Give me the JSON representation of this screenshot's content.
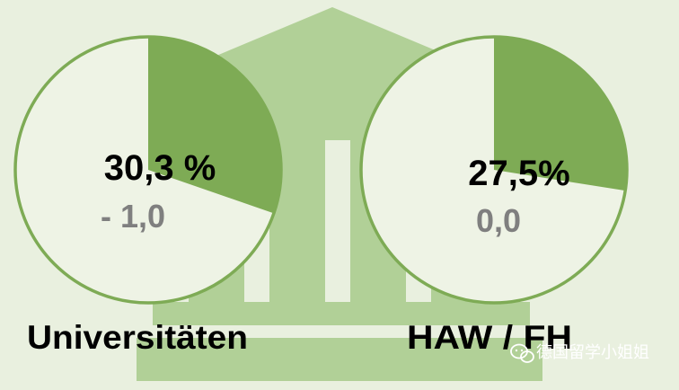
{
  "chart_data": {
    "type": "pie",
    "charts": [
      {
        "category": "Universitäten",
        "value": 30.3,
        "value_label": "30,3 %",
        "change_label": "- 1,0"
      },
      {
        "category": "HAW / FH",
        "value": 27.5,
        "value_label": "27,5%",
        "change_label": "0,0"
      }
    ]
  },
  "watermark": {
    "text": "德国留学小姐姐",
    "icon": "wechat-icon"
  },
  "colors": {
    "background": "#e9f0df",
    "building": "#b1d097",
    "slice": "#7eab55",
    "circle_fill": "#eef3e5",
    "circle_stroke": "#7eab55",
    "change_text": "#7f7f7f",
    "watermark": "#ffffff"
  }
}
